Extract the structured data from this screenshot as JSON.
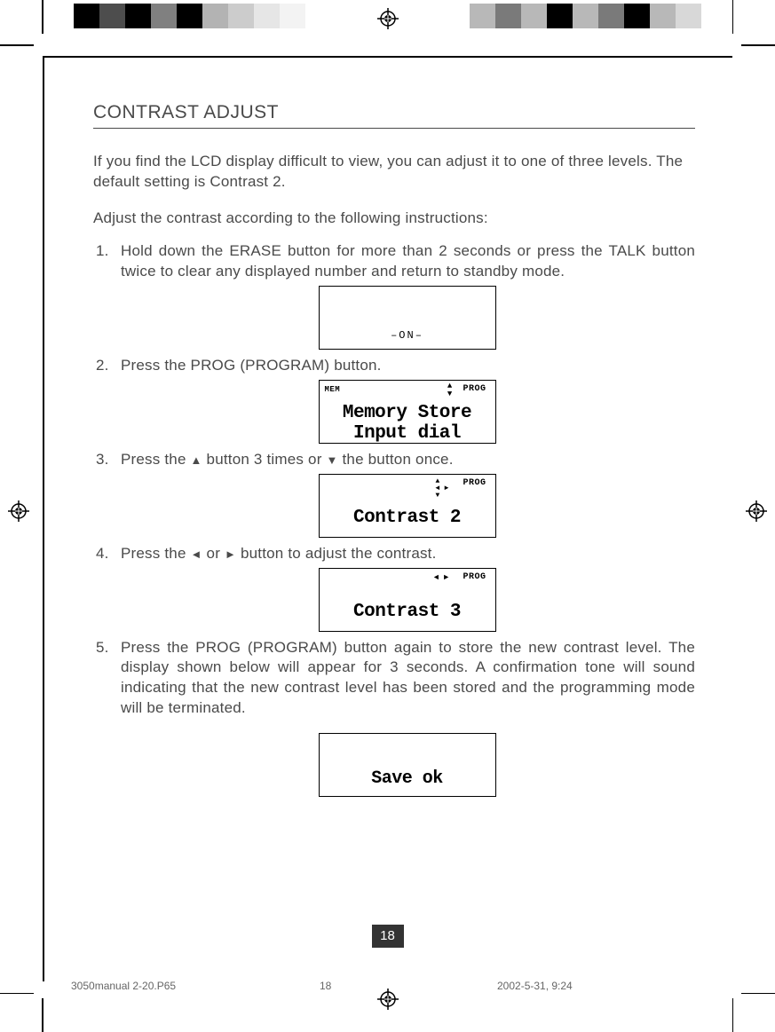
{
  "page": {
    "title": "CONTRAST ADJUST",
    "intro": "If you find the LCD display difficult to view, you can adjust it to one of three levels. The default setting is Contrast 2.",
    "sub_intro": "Adjust the contrast according to the following instructions:",
    "page_number": "18"
  },
  "steps": [
    {
      "num": "1.",
      "text": "Hold down the ERASE button for more than 2 seconds or press the TALK button twice to clear any displayed number and return to standby mode."
    },
    {
      "num": "2.",
      "text": "Press the PROG (PROGRAM) button."
    },
    {
      "num": "3.",
      "text_pre": "Press the ",
      "arrow1": "▲",
      "text_mid": " button 3 times or ",
      "arrow2": "▼",
      "text_post": " the button once."
    },
    {
      "num": "4.",
      "text_pre": "Press the  ",
      "arrow1": "◄",
      "text_mid": " or ",
      "arrow2": "►",
      "text_post": " button to adjust the contrast."
    },
    {
      "num": "5.",
      "text": "Press the PROG (PROGRAM) button again to store the new contrast level. The display shown below will appear for 3 seconds. A confirmation tone will sound indicating that the new contrast level has been stored and the programming mode will be terminated."
    }
  ],
  "lcd": {
    "screen1": {
      "text": "–ON–"
    },
    "screen2": {
      "mem": "MEM",
      "prog": "PROG",
      "line1": "Memory Store",
      "line2": "Input dial"
    },
    "screen3": {
      "prog": "PROG",
      "text": "Contrast 2"
    },
    "screen4": {
      "prog": "PROG",
      "text": "Contrast 3"
    },
    "screen5": {
      "text": "Save ok"
    }
  },
  "footer": {
    "file": "3050manual 2-20.P65",
    "page": "18",
    "date": "2002-5-31, 9:24"
  },
  "colorbar_left": [
    "#000000",
    "#4d4d4d",
    "#000000",
    "#808080",
    "#000000",
    "#b3b3b3",
    "#cccccc",
    "#e6e6e6",
    "#f3f3f3",
    "#ffffff"
  ],
  "colorbar_right": [
    "#ffffff",
    "#b8b8b8",
    "#7a7a7a",
    "#b8b8b8",
    "#000000",
    "#b8b8b8",
    "#7a7a7a",
    "#000000",
    "#b8b8b8",
    "#d8d8d8"
  ],
  "style": {
    "text_color": "#4a4a4a",
    "border_color": "#000000",
    "page_bg": "#ffffff",
    "pagenum_bg": "#333333",
    "body_fontsize": 17,
    "title_fontsize": 21
  }
}
